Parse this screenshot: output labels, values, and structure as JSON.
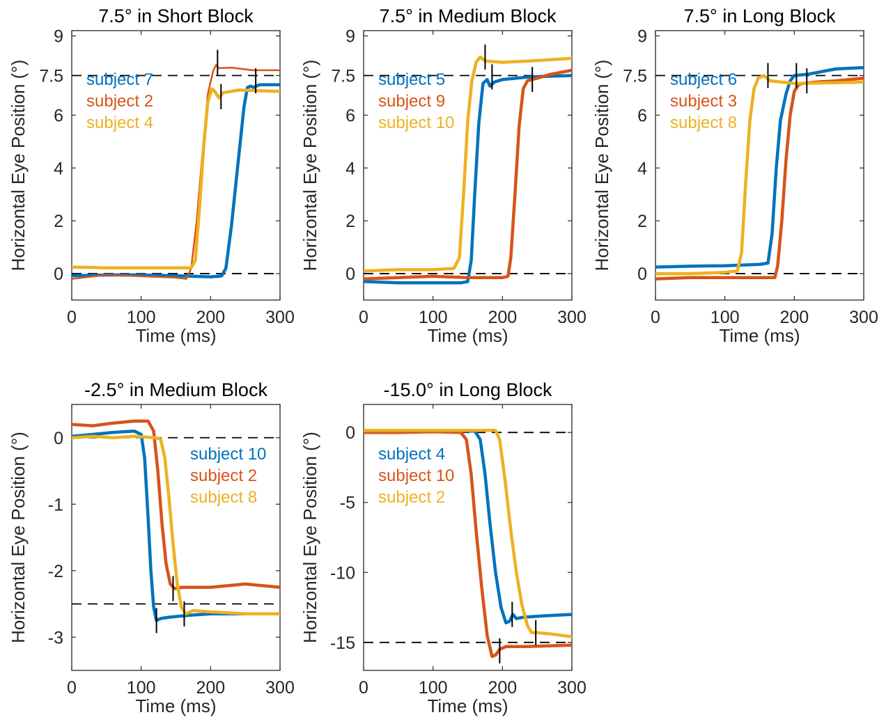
{
  "colors": {
    "blue": "#0072BD",
    "orange": "#D95319",
    "yellow": "#EDB120",
    "ref": "#000000"
  },
  "chart_data": [
    {
      "type": "line",
      "title": "7.5° in Short Block",
      "xlabel": "Time (ms)",
      "ylabel": "Horizontal Eye Position (°)",
      "xlim": [
        0,
        300
      ],
      "ylim": [
        -1,
        9.2
      ],
      "xticks": [
        0,
        100,
        200,
        300
      ],
      "yticks": [
        0,
        2,
        4,
        6,
        7.5,
        9
      ],
      "ytick_labels": [
        "0",
        "2",
        "4",
        "6",
        "7.5",
        "9"
      ],
      "reference_lines": [
        0,
        7.5
      ],
      "legend_position": "upper-left",
      "series": [
        {
          "name": "subject 7",
          "color": "blue",
          "bold": true,
          "x": [
            0,
            50,
            100,
            150,
            200,
            212,
            216,
            222,
            230,
            240,
            248,
            253,
            258,
            262,
            270,
            300
          ],
          "y": [
            -0.08,
            -0.05,
            -0.05,
            -0.08,
            -0.12,
            -0.1,
            -0.08,
            0.2,
            1.8,
            4.3,
            6.3,
            7.05,
            7.1,
            7.05,
            7.15,
            7.15
          ]
        },
        {
          "name": "subject 2",
          "color": "orange",
          "bold": false,
          "x": [
            0,
            50,
            100,
            150,
            165,
            172,
            180,
            188,
            196,
            204,
            208,
            212,
            230,
            260,
            300
          ],
          "y": [
            -0.2,
            -0.05,
            -0.1,
            -0.15,
            -0.2,
            0.2,
            2.0,
            4.5,
            6.8,
            7.7,
            7.9,
            7.78,
            7.8,
            7.7,
            7.7
          ]
        },
        {
          "name": "subject 4",
          "color": "yellow",
          "bold": true,
          "x": [
            0,
            50,
            100,
            150,
            172,
            178,
            184,
            190,
            196,
            202,
            206,
            212,
            218,
            240,
            300
          ],
          "y": [
            0.25,
            0.22,
            0.22,
            0.22,
            0.22,
            0.5,
            2.5,
            4.8,
            6.5,
            7.0,
            6.9,
            6.65,
            6.85,
            6.95,
            6.9
          ]
        }
      ],
      "markers": [
        {
          "x": 210,
          "y": 8.0
        },
        {
          "x": 215,
          "y": 6.7
        },
        {
          "x": 265,
          "y": 7.3
        }
      ]
    },
    {
      "type": "line",
      "title": "7.5° in Medium Block",
      "xlabel": "Time (ms)",
      "ylabel": "Horizontal Eye Position (°)",
      "xlim": [
        0,
        300
      ],
      "ylim": [
        -1,
        9.2
      ],
      "xticks": [
        0,
        100,
        200,
        300
      ],
      "yticks": [
        0,
        2,
        4,
        6,
        7.5,
        9
      ],
      "ytick_labels": [
        "0",
        "2",
        "4",
        "6",
        "7.5",
        "9"
      ],
      "reference_lines": [
        0,
        7.5
      ],
      "legend_position": "upper-left",
      "series": [
        {
          "name": "subject 5",
          "color": "blue",
          "bold": true,
          "x": [
            0,
            50,
            100,
            140,
            150,
            155,
            160,
            166,
            172,
            178,
            182,
            188,
            200,
            240,
            300
          ],
          "y": [
            -0.3,
            -0.35,
            -0.35,
            -0.35,
            -0.3,
            0.5,
            3.0,
            5.7,
            7.2,
            7.35,
            7.1,
            7.25,
            7.35,
            7.45,
            7.5
          ]
        },
        {
          "name": "subject 9",
          "color": "orange",
          "bold": true,
          "x": [
            0,
            50,
            100,
            150,
            200,
            208,
            212,
            218,
            224,
            230,
            236,
            242,
            250,
            270,
            300
          ],
          "y": [
            -0.2,
            -0.15,
            -0.1,
            -0.15,
            -0.15,
            -0.1,
            0.6,
            3.0,
            5.6,
            7.0,
            7.3,
            7.35,
            7.4,
            7.55,
            7.7
          ]
        },
        {
          "name": "subject 10",
          "color": "yellow",
          "bold": true,
          "x": [
            0,
            50,
            100,
            130,
            138,
            144,
            150,
            156,
            162,
            168,
            175,
            200,
            240,
            300
          ],
          "y": [
            0.1,
            0.15,
            0.15,
            0.2,
            0.6,
            3.0,
            5.8,
            7.3,
            8.0,
            8.2,
            8.05,
            8.0,
            8.05,
            8.15
          ]
        }
      ],
      "markers": [
        {
          "x": 175,
          "y": 8.2
        },
        {
          "x": 185,
          "y": 7.45
        },
        {
          "x": 243,
          "y": 7.35
        }
      ]
    },
    {
      "type": "line",
      "title": "7.5° in Long Block",
      "xlabel": "Time (ms)",
      "ylabel": "Horizontal Eye Position (°)",
      "xlim": [
        0,
        300
      ],
      "ylim": [
        -1,
        9.2
      ],
      "xticks": [
        0,
        100,
        200,
        300
      ],
      "yticks": [
        0,
        2,
        4,
        6,
        7.5,
        9
      ],
      "ytick_labels": [
        "0",
        "2",
        "4",
        "6",
        "7.5",
        "9"
      ],
      "reference_lines": [
        0,
        7.5
      ],
      "legend_position": "upper-left",
      "series": [
        {
          "name": "subject 6",
          "color": "blue",
          "bold": true,
          "x": [
            0,
            50,
            100,
            150,
            162,
            168,
            174,
            180,
            188,
            194,
            200,
            220,
            260,
            300
          ],
          "y": [
            0.25,
            0.28,
            0.3,
            0.35,
            0.4,
            1.5,
            4.0,
            5.8,
            6.8,
            7.3,
            7.5,
            7.55,
            7.75,
            7.8
          ]
        },
        {
          "name": "subject 3",
          "color": "orange",
          "bold": true,
          "x": [
            0,
            50,
            100,
            150,
            172,
            176,
            182,
            188,
            194,
            200,
            206,
            212,
            230,
            260,
            300
          ],
          "y": [
            -0.2,
            -0.15,
            -0.15,
            -0.15,
            -0.15,
            0.3,
            2.0,
            4.3,
            6.0,
            6.9,
            7.15,
            7.2,
            7.25,
            7.3,
            7.4
          ]
        },
        {
          "name": "subject 8",
          "color": "yellow",
          "bold": true,
          "x": [
            0,
            50,
            100,
            118,
            124,
            130,
            136,
            142,
            148,
            156,
            165,
            200,
            300
          ],
          "y": [
            0,
            0,
            0.05,
            0.1,
            0.8,
            3.5,
            5.8,
            7.0,
            7.4,
            7.5,
            7.3,
            7.2,
            7.25
          ]
        }
      ],
      "markers": [
        {
          "x": 162,
          "y": 7.5
        },
        {
          "x": 203,
          "y": 7.5
        },
        {
          "x": 218,
          "y": 7.3
        }
      ]
    },
    {
      "type": "line",
      "title": "-2.5° in Medium Block",
      "xlabel": "Time (ms)",
      "ylabel": "Horizontal Eye Position (°)",
      "xlim": [
        0,
        300
      ],
      "ylim": [
        -3.5,
        0.5
      ],
      "xticks": [
        0,
        100,
        200,
        300
      ],
      "yticks": [
        0,
        -1,
        -2,
        -3
      ],
      "ytick_labels": [
        "0",
        "-1",
        "-2",
        "-3"
      ],
      "reference_lines": [
        0,
        -2.5
      ],
      "legend_position": "right",
      "series": [
        {
          "name": "subject 10",
          "color": "blue",
          "bold": true,
          "x": [
            0,
            30,
            60,
            90,
            100,
            105,
            110,
            114,
            118,
            122,
            128,
            140,
            170,
            200,
            250,
            300
          ],
          "y": [
            0.02,
            0.05,
            0.08,
            0.1,
            0.05,
            -0.3,
            -1.2,
            -2.0,
            -2.55,
            -2.75,
            -2.72,
            -2.7,
            -2.67,
            -2.65,
            -2.65,
            -2.65
          ]
        },
        {
          "name": "subject 2",
          "color": "orange",
          "bold": true,
          "x": [
            0,
            30,
            60,
            90,
            110,
            118,
            124,
            130,
            136,
            142,
            148,
            160,
            200,
            250,
            300
          ],
          "y": [
            0.2,
            0.18,
            0.22,
            0.25,
            0.25,
            0.1,
            -0.5,
            -1.3,
            -1.9,
            -2.2,
            -2.27,
            -2.25,
            -2.25,
            -2.2,
            -2.25
          ]
        },
        {
          "name": "subject 8",
          "color": "yellow",
          "bold": true,
          "x": [
            0,
            30,
            60,
            90,
            120,
            128,
            134,
            140,
            146,
            152,
            158,
            164,
            175,
            200,
            250,
            300
          ],
          "y": [
            0.0,
            0.02,
            0.0,
            0.02,
            0.0,
            -0.02,
            -0.3,
            -0.9,
            -1.6,
            -2.2,
            -2.55,
            -2.65,
            -2.6,
            -2.62,
            -2.65,
            -2.65
          ]
        }
      ],
      "markers": [
        {
          "x": 122,
          "y": -2.75
        },
        {
          "x": 146,
          "y": -2.27
        },
        {
          "x": 162,
          "y": -2.65
        }
      ]
    },
    {
      "type": "line",
      "title": "-15.0° in Long Block",
      "xlabel": "Time (ms)",
      "ylabel": "Horizontal Eye Position (°)",
      "xlim": [
        0,
        300
      ],
      "ylim": [
        -17,
        2
      ],
      "xticks": [
        0,
        100,
        200,
        300
      ],
      "yticks": [
        0,
        -5,
        -10,
        -15
      ],
      "ytick_labels": [
        "0",
        "-5",
        "-10",
        "-15"
      ],
      "reference_lines": [
        0,
        -15
      ],
      "legend_position": "upper-left",
      "series": [
        {
          "name": "subject 4",
          "color": "blue",
          "bold": true,
          "x": [
            0,
            50,
            80,
            120,
            160,
            168,
            175,
            182,
            190,
            198,
            205,
            210,
            215,
            220,
            230,
            260,
            300
          ],
          "y": [
            0.1,
            0.1,
            0.15,
            0.1,
            0.1,
            -0.5,
            -3.0,
            -6.5,
            -10.0,
            -12.5,
            -13.6,
            -13.5,
            -13.0,
            -13.3,
            -13.2,
            -13.1,
            -13.0
          ]
        },
        {
          "name": "subject 10",
          "color": "orange",
          "bold": true,
          "x": [
            0,
            50,
            100,
            140,
            148,
            155,
            162,
            170,
            178,
            185,
            190,
            196,
            205,
            230,
            300
          ],
          "y": [
            0.0,
            0.0,
            0.05,
            0.0,
            -0.5,
            -3.0,
            -7.0,
            -11.0,
            -14.5,
            -16.0,
            -15.9,
            -15.5,
            -15.3,
            -15.3,
            -15.2
          ]
        },
        {
          "name": "subject 2",
          "color": "yellow",
          "bold": true,
          "x": [
            0,
            50,
            100,
            150,
            190,
            196,
            204,
            212,
            220,
            228,
            236,
            242,
            250,
            270,
            300
          ],
          "y": [
            0.15,
            0.15,
            0.15,
            0.15,
            0.15,
            -0.5,
            -3.5,
            -7.0,
            -10.0,
            -12.3,
            -13.8,
            -14.3,
            -14.3,
            -14.4,
            -14.6
          ]
        }
      ],
      "markers": [
        {
          "x": 196,
          "y": -15.6
        },
        {
          "x": 214,
          "y": -13.0
        },
        {
          "x": 248,
          "y": -14.3
        }
      ]
    }
  ]
}
